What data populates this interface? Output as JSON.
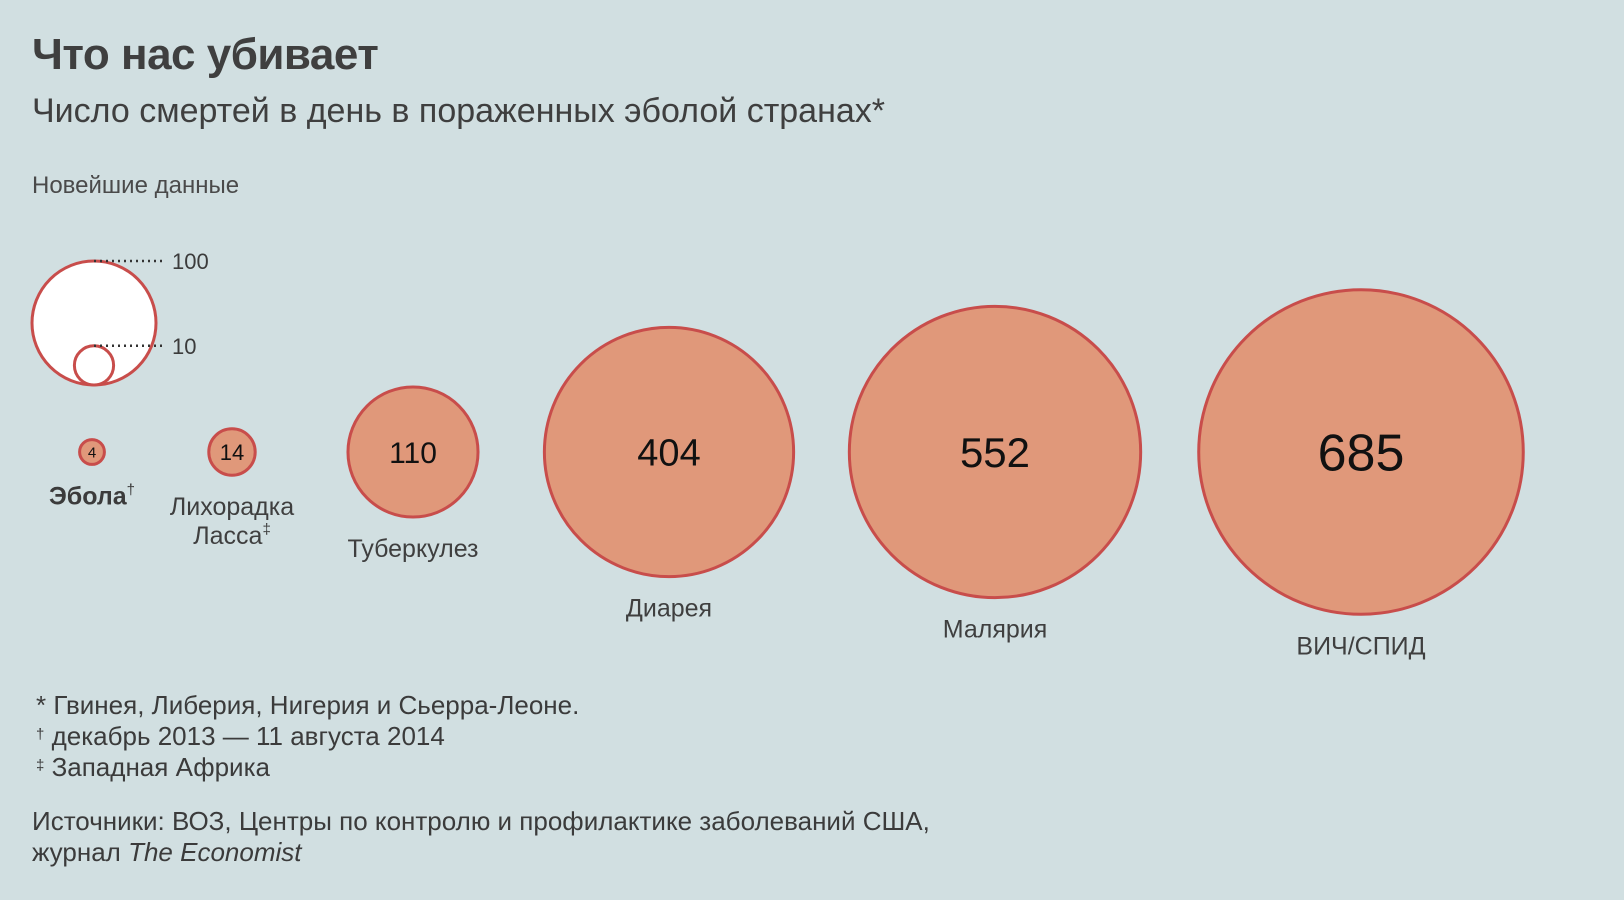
{
  "title": "Что нас убивает",
  "subtitle": "Число смертей в день в пораженных эболой странах*",
  "latest_label": "Новейшие данные",
  "legend": {
    "values": [
      100,
      10
    ],
    "labels": [
      "100",
      "10"
    ]
  },
  "chart_data": {
    "type": "bubble",
    "title": "Что нас убивает",
    "subtitle": "Число смертей в день в пораженных эболой странах*",
    "categories": [
      "Эбола",
      "Лихорадка Ласса",
      "Туберкулез",
      "Диарея",
      "Малярия",
      "ВИЧ/СПИД"
    ],
    "values": [
      4,
      14,
      110,
      404,
      552,
      685
    ],
    "markers": [
      "†",
      "‡",
      "",
      "",
      "",
      ""
    ],
    "highlight": "Эбола",
    "size_encoding": "area",
    "fill_color": "#e0987a",
    "stroke_color": "#c84d4b",
    "label_color": "#111111"
  },
  "notes": {
    "n1": "* Гвинея, Либерия, Нигерия и Сьерра-Леоне.",
    "n2_mark": "†",
    "n2": " декабрь 2013 — 11 августа 2014",
    "n3_mark": "‡",
    "n3": " Западная Африка"
  },
  "sources": {
    "line1": "Источники: ВОЗ, Центры по контролю и профилактике заболеваний США,",
    "line2_prefix": "журнал ",
    "line2_italic": "The Economist"
  }
}
